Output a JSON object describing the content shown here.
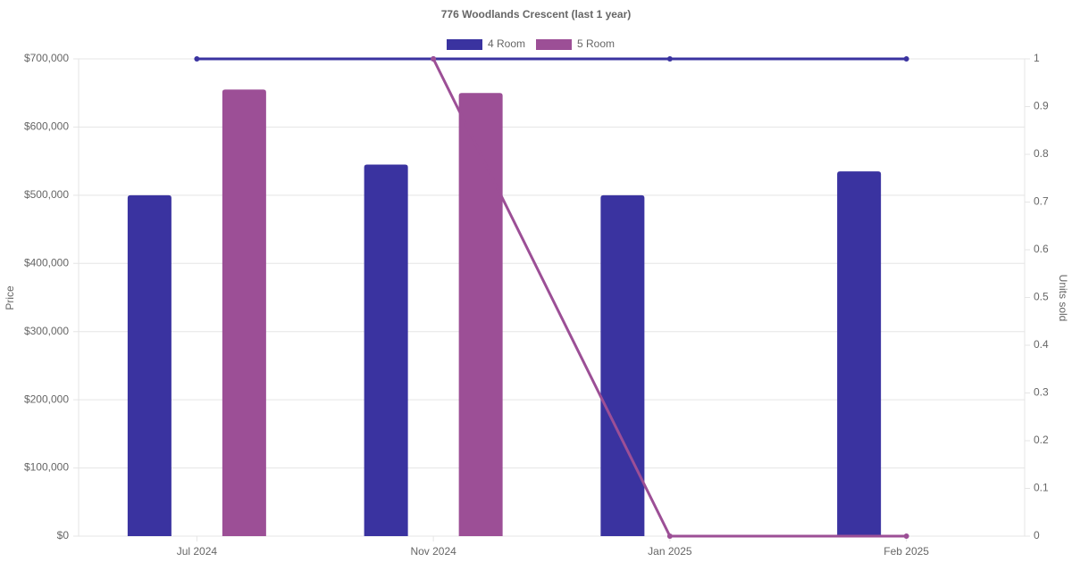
{
  "chart_data": {
    "type": "bar-line",
    "title": "776 Woodlands Crescent (last 1 year)",
    "categories": [
      "Jul 2024",
      "Nov 2024",
      "Jan 2025",
      "Feb 2025"
    ],
    "series": [
      {
        "name": "4 Room",
        "color": "#3a33a0",
        "values": [
          500000,
          545000,
          500000,
          535000
        ],
        "units": [
          1,
          1,
          1,
          1
        ]
      },
      {
        "name": "5 Room",
        "color": "#9c4f96",
        "values": [
          655000,
          650000,
          null,
          null
        ],
        "units": [
          null,
          1,
          0,
          0
        ]
      }
    ],
    "y_label": "Price",
    "y2_label": "Units sold",
    "ylim": [
      0,
      700000
    ],
    "yticks": [
      {
        "value": 0,
        "label": "$0"
      },
      {
        "value": 100000,
        "label": "$100,000"
      },
      {
        "value": 200000,
        "label": "$200,000"
      },
      {
        "value": 300000,
        "label": "$300,000"
      },
      {
        "value": 400000,
        "label": "$400,000"
      },
      {
        "value": 500000,
        "label": "$500,000"
      },
      {
        "value": 600000,
        "label": "$600,000"
      },
      {
        "value": 700000,
        "label": "$700,000"
      }
    ],
    "y2lim": [
      0,
      1
    ],
    "y2ticks": [
      0,
      0.1,
      0.2,
      0.3,
      0.4,
      0.5,
      0.6,
      0.7,
      0.8,
      0.9,
      1
    ],
    "grid": true,
    "legend": "top"
  }
}
